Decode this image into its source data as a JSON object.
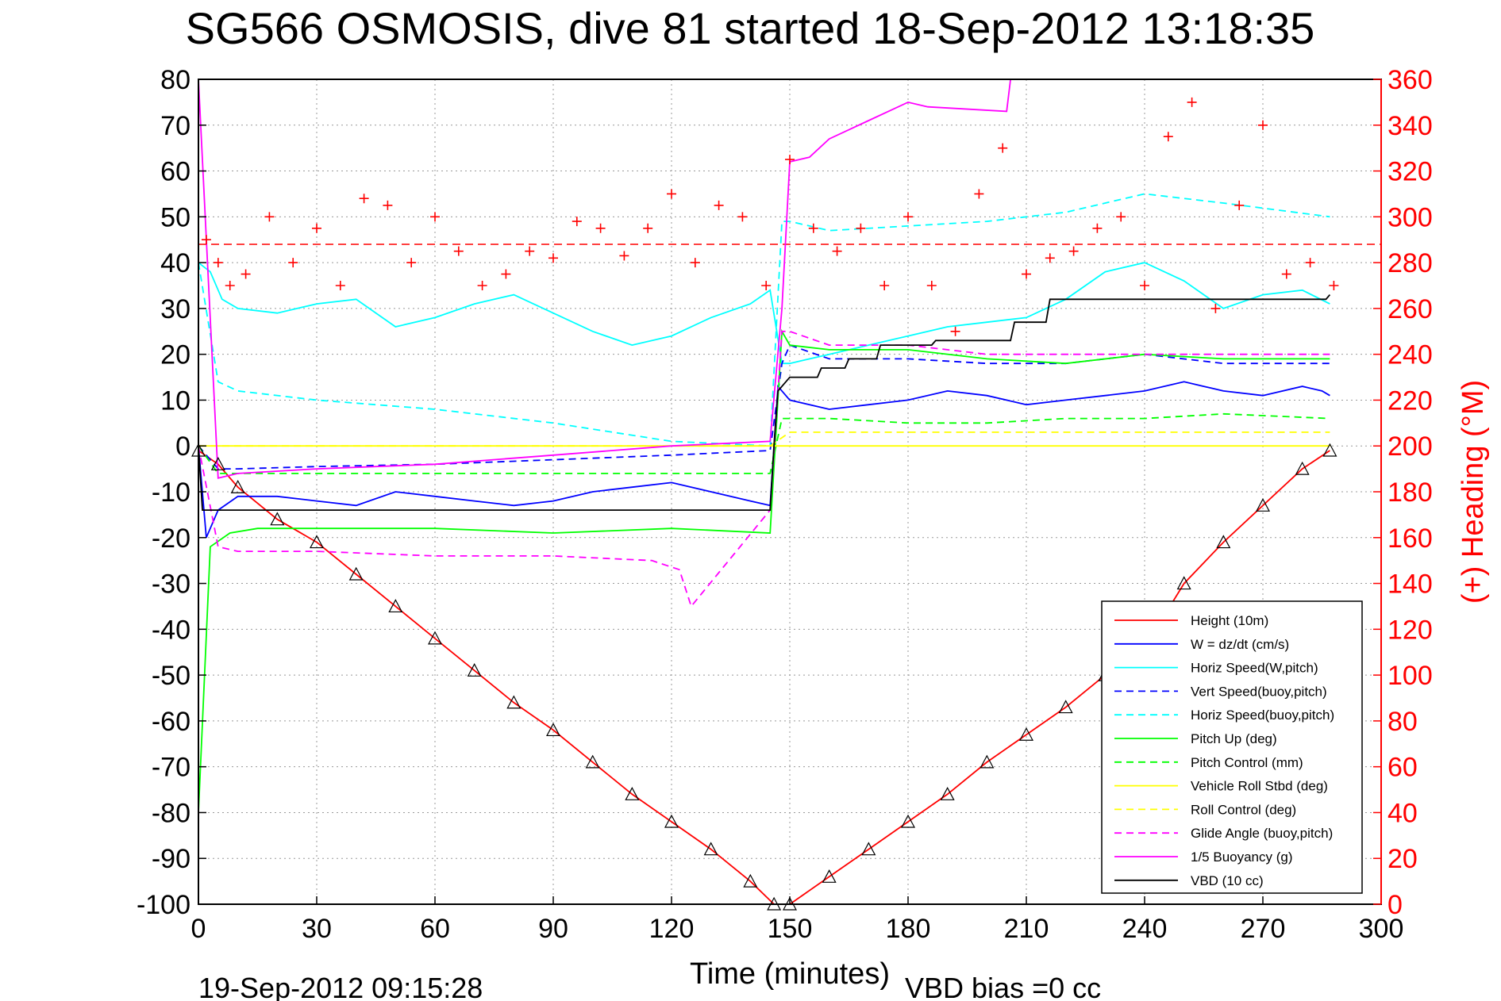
{
  "chart_data": {
    "type": "line",
    "title": "SG566 OSMOSIS, dive 81 started 18-Sep-2012 13:18:35",
    "xlabel": "Time (minutes)",
    "ylabel_right": "(+) Heading (°M)",
    "footer_left": "19-Sep-2012 09:15:28",
    "footer_right": "VBD bias =0 cc",
    "xlim": [
      0,
      300
    ],
    "ylim": [
      -100,
      80
    ],
    "ylim_right": [
      0,
      360
    ],
    "xticks": [
      0,
      30,
      60,
      90,
      120,
      150,
      180,
      210,
      240,
      270,
      300
    ],
    "yticks": [
      -100,
      -90,
      -80,
      -70,
      -60,
      -50,
      -40,
      -30,
      -20,
      -10,
      0,
      10,
      20,
      30,
      40,
      50,
      60,
      70,
      80
    ],
    "yticks_right": [
      0,
      20,
      40,
      60,
      80,
      100,
      120,
      140,
      160,
      180,
      200,
      220,
      240,
      260,
      280,
      300,
      320,
      340,
      360
    ],
    "grid": true,
    "legend_position": "bottom-right",
    "reference_heading": 288,
    "colors": {
      "height": "#ff0000",
      "w": "#0000ff",
      "horiz_speed": "#00ffff",
      "pitch": "#00ff00",
      "roll": "#ffff00",
      "glide": "#ff00ff",
      "vbd": "#000000",
      "heading": "#ff0000"
    },
    "series": [
      {
        "name": "Height (10m)",
        "color": "#ff0000",
        "style": "solid",
        "x": [
          0,
          5,
          10,
          20,
          30,
          40,
          50,
          60,
          70,
          80,
          90,
          100,
          110,
          120,
          130,
          140,
          146,
          150,
          160,
          170,
          180,
          190,
          200,
          210,
          220,
          230,
          240,
          250,
          260,
          270,
          280,
          287
        ],
        "y": [
          -1,
          -4,
          -9,
          -16,
          -21,
          -28,
          -35,
          -42,
          -49,
          -56,
          -62,
          -69,
          -76,
          -82,
          -88,
          -95,
          -100,
          -100,
          -94,
          -88,
          -82,
          -76,
          -69,
          -63,
          -57,
          -50,
          -44,
          -30,
          -21,
          -13,
          -5,
          -1
        ]
      },
      {
        "name": "W = dz/dt (cm/s)",
        "color": "#0000ff",
        "style": "solid",
        "x": [
          0,
          2,
          5,
          10,
          20,
          30,
          40,
          50,
          60,
          70,
          80,
          90,
          100,
          110,
          120,
          130,
          140,
          145,
          147,
          150,
          160,
          170,
          180,
          190,
          200,
          210,
          220,
          230,
          240,
          250,
          255,
          260,
          270,
          280,
          285,
          287
        ],
        "y": [
          0,
          -20,
          -14,
          -11,
          -11,
          -12,
          -13,
          -10,
          -11,
          -12,
          -13,
          -12,
          -10,
          -9,
          -8,
          -10,
          -12,
          -13,
          13,
          10,
          8,
          9,
          10,
          12,
          11,
          9,
          10,
          11,
          12,
          14,
          13,
          12,
          11,
          13,
          12,
          11
        ]
      },
      {
        "name": "Horiz Speed(W,pitch)",
        "color": "#00ffff",
        "style": "solid",
        "x": [
          0,
          3,
          6,
          10,
          20,
          30,
          40,
          50,
          60,
          70,
          80,
          90,
          100,
          110,
          120,
          130,
          140,
          145,
          148,
          150,
          160,
          170,
          180,
          190,
          200,
          210,
          220,
          230,
          240,
          250,
          260,
          270,
          280,
          287
        ],
        "y": [
          40,
          38,
          32,
          30,
          29,
          31,
          32,
          26,
          28,
          31,
          33,
          29,
          25,
          22,
          24,
          28,
          31,
          34,
          18,
          18,
          20,
          22,
          24,
          26,
          27,
          28,
          32,
          38,
          40,
          36,
          30,
          33,
          34,
          31
        ]
      },
      {
        "name": "Vert Speed(buoy,pitch)",
        "color": "#0000ff",
        "style": "dashed",
        "x": [
          0,
          5,
          10,
          30,
          60,
          90,
          120,
          145,
          148,
          150,
          160,
          180,
          200,
          220,
          240,
          260,
          287
        ],
        "y": [
          0,
          -5,
          -5,
          -4.5,
          -4,
          -3,
          -2,
          -1,
          18,
          22,
          19,
          19,
          18,
          18,
          20,
          18,
          18
        ]
      },
      {
        "name": "Horiz Speed(buoy,pitch)",
        "color": "#00ffff",
        "style": "dashed",
        "x": [
          0,
          5,
          10,
          30,
          60,
          90,
          120,
          145,
          148,
          150,
          160,
          180,
          200,
          220,
          240,
          260,
          287
        ],
        "y": [
          40,
          14,
          12,
          10,
          8,
          5,
          1,
          0,
          49,
          49,
          47,
          48,
          49,
          51,
          55,
          53,
          50
        ]
      },
      {
        "name": "Pitch Up (deg)",
        "color": "#00ff00",
        "style": "solid",
        "x": [
          0,
          3,
          8,
          15,
          30,
          60,
          90,
          120,
          145,
          148,
          150,
          160,
          180,
          200,
          220,
          240,
          260,
          287
        ],
        "y": [
          -80,
          -22,
          -19,
          -18,
          -18,
          -18,
          -19,
          -18,
          -19,
          25,
          22,
          21,
          21,
          19,
          18,
          20,
          19,
          19
        ]
      },
      {
        "name": "Pitch Control (mm)",
        "color": "#00ff00",
        "style": "dashed",
        "x": [
          0,
          5,
          10,
          30,
          60,
          90,
          120,
          145,
          148,
          150,
          160,
          180,
          200,
          220,
          240,
          260,
          287
        ],
        "y": [
          0,
          -6,
          -6,
          -6,
          -6,
          -6,
          -6,
          -6,
          6,
          6,
          6,
          5,
          5,
          6,
          6,
          7,
          6
        ]
      },
      {
        "name": "Vehicle Roll Stbd (deg)",
        "color": "#ffff00",
        "style": "solid",
        "x": [
          0,
          10,
          30,
          60,
          90,
          120,
          145,
          150,
          180,
          210,
          240,
          270,
          287
        ],
        "y": [
          0,
          0,
          0,
          0,
          0,
          0,
          0,
          0,
          0,
          0,
          0,
          0,
          0
        ]
      },
      {
        "name": "Roll Control (deg)",
        "color": "#ffff00",
        "style": "dashed",
        "x": [
          0,
          10,
          30,
          60,
          90,
          120,
          145,
          150,
          180,
          210,
          240,
          270,
          287
        ],
        "y": [
          0,
          0,
          0,
          0,
          0,
          0,
          0,
          3,
          3,
          3,
          3,
          3,
          3
        ]
      },
      {
        "name": "Glide Angle (buoy,pitch)",
        "color": "#ff00ff",
        "style": "dashed",
        "x": [
          0,
          5,
          10,
          30,
          60,
          90,
          115,
          122,
          125,
          145,
          148,
          150,
          160,
          180,
          200,
          220,
          240,
          260,
          287
        ],
        "y": [
          0,
          -22,
          -23,
          -23,
          -24,
          -24,
          -25,
          -27,
          -35,
          -14,
          25,
          25,
          22,
          22,
          20,
          20,
          20,
          20,
          20
        ]
      },
      {
        "name": "1/5 Buoyancy (g)",
        "color": "#ff00ff",
        "style": "solid",
        "x": [
          0,
          5,
          10,
          30,
          60,
          90,
          120,
          145,
          148,
          150,
          155,
          160,
          165,
          170,
          175,
          180,
          185,
          205,
          206,
          280,
          287
        ],
        "y": [
          80,
          -7,
          -6,
          -5,
          -4,
          -2,
          0,
          1,
          30,
          62,
          63,
          67,
          69,
          71,
          73,
          75,
          74,
          73,
          80,
          80,
          80
        ]
      },
      {
        "name": "VBD (10 cc)",
        "color": "#000000",
        "style": "solid",
        "x": [
          0,
          1,
          2,
          100,
          145,
          146,
          147,
          150,
          157,
          158,
          164,
          165,
          172,
          173,
          186,
          187,
          206,
          207,
          215,
          216,
          286,
          287
        ],
        "y": [
          0,
          -14,
          -14,
          -14,
          -14,
          0,
          12,
          15,
          15,
          17,
          17,
          19,
          19,
          22,
          22,
          23,
          23,
          27,
          27,
          32,
          32,
          33
        ]
      }
    ],
    "heading_scatter": {
      "name": "(+) Heading (°M)",
      "x": [
        2,
        5,
        8,
        12,
        18,
        24,
        30,
        36,
        42,
        48,
        54,
        60,
        66,
        72,
        78,
        84,
        90,
        96,
        102,
        108,
        114,
        120,
        126,
        132,
        138,
        144,
        150,
        156,
        162,
        168,
        174,
        180,
        186,
        192,
        198,
        204,
        210,
        216,
        222,
        228,
        234,
        240,
        246,
        252,
        258,
        264,
        270,
        276,
        282,
        288
      ],
      "y": [
        290,
        280,
        270,
        275,
        300,
        280,
        295,
        270,
        308,
        305,
        280,
        300,
        285,
        270,
        275,
        285,
        282,
        298,
        295,
        283,
        295,
        310,
        280,
        305,
        300,
        270,
        325,
        295,
        285,
        295,
        270,
        300,
        270,
        250,
        310,
        330,
        275,
        282,
        285,
        295,
        300,
        270,
        335,
        350,
        260,
        305,
        340,
        275,
        280,
        270
      ]
    }
  },
  "legend": {
    "entries": [
      "Height (10m)",
      "W = dz/dt (cm/s)",
      "Horiz Speed(W,pitch)",
      "Vert Speed(buoy,pitch)",
      "Horiz Speed(buoy,pitch)",
      "Pitch Up (deg)",
      "Pitch Control (mm)",
      "Vehicle Roll Stbd (deg)",
      "Roll Control (deg)",
      "Glide Angle (buoy,pitch)",
      "1/5 Buoyancy (g)",
      "VBD (10 cc)"
    ]
  }
}
